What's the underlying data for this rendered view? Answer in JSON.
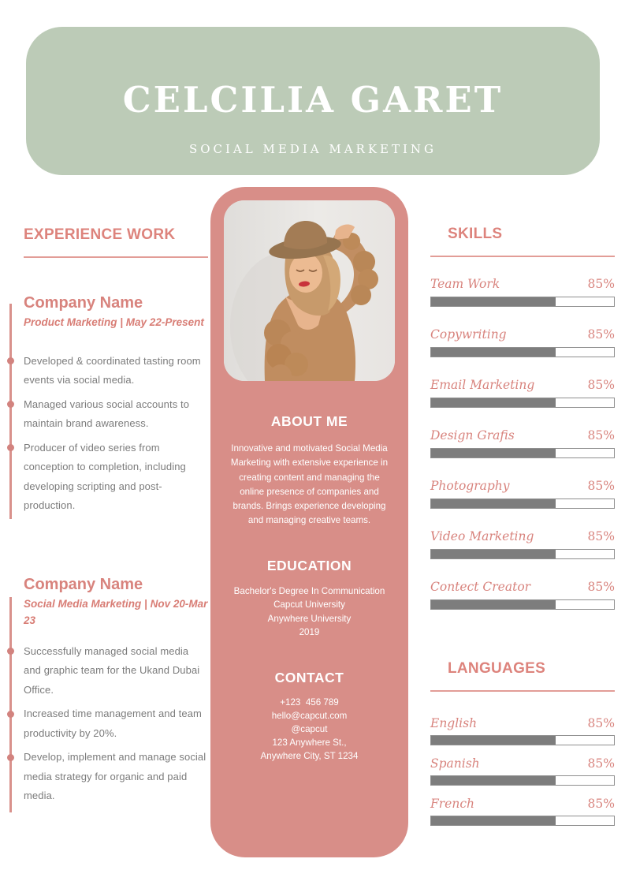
{
  "colors": {
    "accent_pink": "#d88e88",
    "heading_pink": "#dd837c",
    "sage_green": "#bccbb7",
    "bar_fill_gray": "#7d7d7d",
    "body_text_gray": "#7b7b7b"
  },
  "header": {
    "name": "CELCILIA GARET",
    "title": "SOCIAL MEDIA MARKETING"
  },
  "experience": {
    "heading": "EXPERIENCE WORK",
    "jobs": [
      {
        "company": "Company Name",
        "meta": "Product Marketing | May 22-Present",
        "bullets": [
          "Developed & coordinated tasting room events via social media.",
          "Managed various social accounts to maintain brand awareness.",
          "Producer of video series from conception to completion, including developing scripting and post-production."
        ]
      },
      {
        "company": "Company Name",
        "meta": "Social Media Marketing | Nov 20-Mar 23",
        "bullets": [
          "Successfully managed social media and graphic team for the Ukand Dubai Office.",
          "Increased time management and team productivity by 20%.",
          "Develop, implement and manage social media strategy for organic and paid media."
        ]
      }
    ]
  },
  "photo": {
    "alt": "portrait of woman in brown knit cardigan and hat"
  },
  "about": {
    "heading": "ABOUT ME",
    "text": "Innovative and motivated Social Media Marketing with extensive experience in creating content and managing the online presence of companies and brands. Brings experience developing and managing creative teams."
  },
  "education": {
    "heading": "EDUCATION",
    "lines": "Bachelor's Degree In Communication\nCapcut University\nAnywhere University\n2019"
  },
  "contact": {
    "heading": "CONTACT",
    "lines": "+123  456 789\nhello@capcut.com\n@capcut\n123 Anywhere St.,\nAnywhere City, ST 1234"
  },
  "skills": {
    "heading": "SKILLS",
    "items": [
      {
        "label": "Team Work",
        "percent": "85%",
        "fill": 68
      },
      {
        "label": "Copywriting",
        "percent": "85%",
        "fill": 68
      },
      {
        "label": "Email Marketing",
        "percent": "85%",
        "fill": 68
      },
      {
        "label": "Design Grafis",
        "percent": "85%",
        "fill": 68
      },
      {
        "label": "Photography",
        "percent": "85%",
        "fill": 68
      },
      {
        "label": "Video Marketing",
        "percent": "85%",
        "fill": 68
      },
      {
        "label": "Contect Creator",
        "percent": "85%",
        "fill": 68
      }
    ]
  },
  "languages": {
    "heading": "LANGUAGES",
    "items": [
      {
        "label": "English",
        "percent": "85%",
        "fill": 68
      },
      {
        "label": "Spanish",
        "percent": "85%",
        "fill": 68
      },
      {
        "label": "French",
        "percent": "85%",
        "fill": 68
      }
    ]
  }
}
